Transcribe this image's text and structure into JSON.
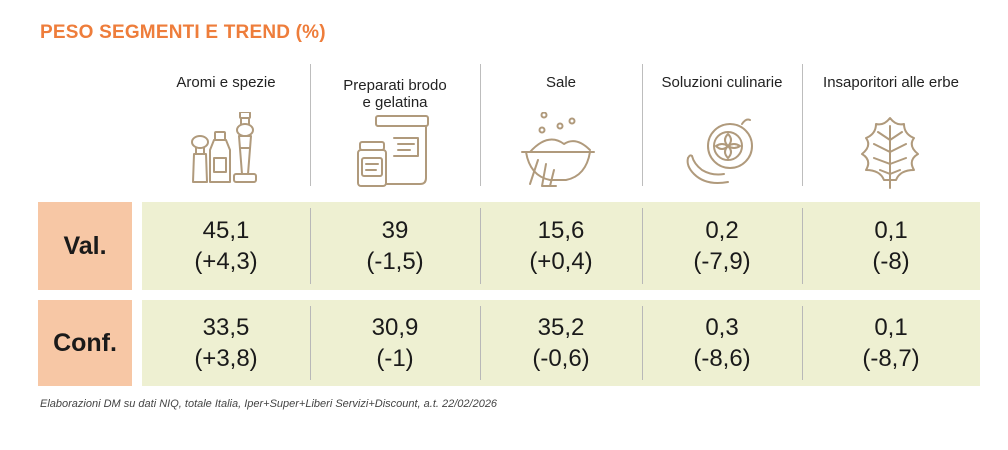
{
  "title": "PESO SEGMENTI E TREND (%)",
  "footnote": "Elaborazioni DM su dati NIQ, totale Italia, Iper+Super+Liberi Servizi+Discount, a.t. 22/02/2026",
  "colors": {
    "title": "#ee7d3b",
    "row_label_bg": "#f7c7a5",
    "row_band_bg": "#eef0d2",
    "icon_stroke": "#b09a7c"
  },
  "columns": [
    {
      "label_lines": [
        "Aromi e spezie"
      ],
      "icon": "spice-bottles-icon"
    },
    {
      "label_lines": [
        "Preparati brodo",
        "e gelatina"
      ],
      "icon": "broth-jars-icon"
    },
    {
      "label_lines": [
        "Sale"
      ],
      "icon": "salt-bowl-icon"
    },
    {
      "label_lines": [
        "Soluzioni culinarie"
      ],
      "icon": "vegetables-icon"
    },
    {
      "label_lines": [
        "Insaporitori alle erbe"
      ],
      "icon": "herb-leaf-icon"
    }
  ],
  "chart_data": {
    "type": "table",
    "title": "PESO SEGMENTI E TREND (%)",
    "categories": [
      "Aromi e spezie",
      "Preparati brodo e gelatina",
      "Sale",
      "Soluzioni culinarie",
      "Insaporitori alle erbe"
    ],
    "rows": [
      {
        "label": "Val.",
        "values": [
          "45,1",
          "39",
          "15,6",
          "0,2",
          "0,1"
        ],
        "trends": [
          "(+4,3)",
          "(-1,5)",
          "(+0,4)",
          "(-7,9)",
          "(-8)"
        ]
      },
      {
        "label": "Conf.",
        "values": [
          "33,5",
          "30,9",
          "35,2",
          "0,3",
          "0,1"
        ],
        "trends": [
          "(+3,8)",
          "(-1)",
          "(-0,6)",
          "(-8,6)",
          "(-8,7)"
        ]
      }
    ]
  }
}
